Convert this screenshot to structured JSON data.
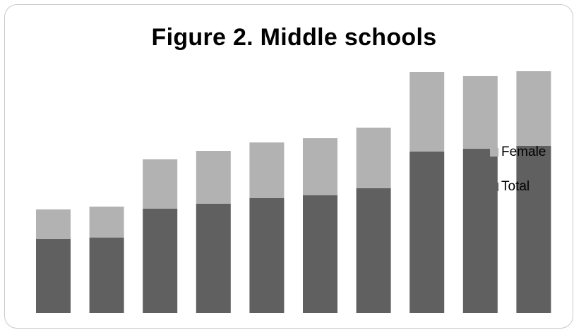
{
  "chart_data": {
    "type": "bar",
    "stacked": true,
    "title": "Figure 2. Middle schools",
    "xlabel": "",
    "ylabel": "",
    "categories": [
      "",
      "",
      "",
      "",
      "",
      "",
      "",
      "",
      "",
      ""
    ],
    "series": [
      {
        "name": "Total",
        "color": "#606060",
        "values": [
          105,
          107,
          148,
          155,
          163,
          167,
          177,
          229,
          233,
          237
        ]
      },
      {
        "name": "Female",
        "color": "#b2b2b2",
        "values": [
          42,
          44,
          70,
          75,
          79,
          81,
          86,
          113,
          103,
          106
        ]
      }
    ],
    "ylim": [
      0,
      350
    ],
    "grid": false,
    "legend_position": "right"
  }
}
